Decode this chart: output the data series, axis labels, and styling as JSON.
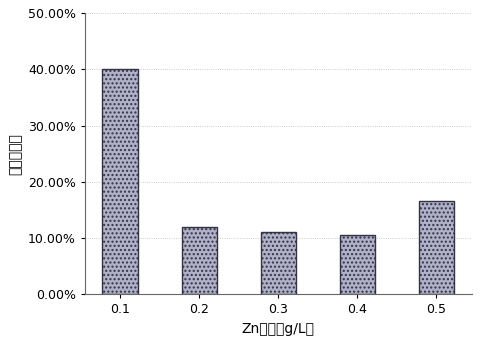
{
  "categories": [
    "0.1",
    "0.2",
    "0.3",
    "0.4",
    "0.5"
  ],
  "values": [
    0.4,
    0.12,
    0.11,
    0.105,
    0.165
  ],
  "bar_color": "#b0b0c8",
  "bar_edge_color": "#333344",
  "bar_hatch_color": "#e8e8f0",
  "xlabel": "Zn浓度（g/L）",
  "ylabel": "最高去除率",
  "ylim": [
    0,
    0.5
  ],
  "yticks": [
    0.0,
    0.1,
    0.2,
    0.3,
    0.4,
    0.5
  ],
  "ytick_labels": [
    "0.00%",
    "10.00%",
    "20.00%",
    "30.00%",
    "40.00%",
    "50.00%"
  ],
  "background_color": "#ffffff",
  "grid_color": "#bbbbbb",
  "xlabel_fontsize": 10,
  "ylabel_fontsize": 10,
  "tick_fontsize": 9,
  "bar_width": 0.45
}
